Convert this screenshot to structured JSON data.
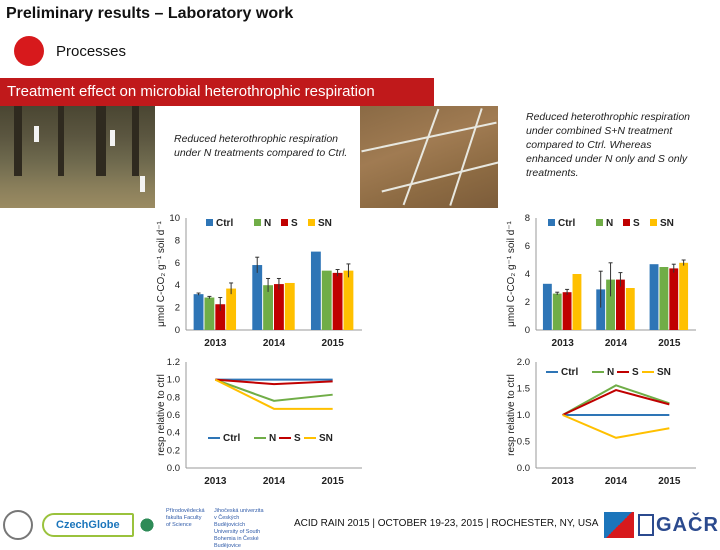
{
  "header": {
    "title": "Preliminary results – Laboratory work",
    "section": "Processes",
    "banner": "Treatment effect on microbial heterothrophic respiration"
  },
  "notes": {
    "left": "Reduced heterothrophic respiration under N treatments compared to Ctrl.",
    "right": "Reduced heterothrophic respiration under combined S+N treatment compared to Ctrl. Whereas enhanced under N only and S only treatments."
  },
  "footer": {
    "conference": "ACID RAIN 2015 | OCTOBER 19-23, 2015 | ROCHESTER, NY, USA",
    "logo_czechglobe": "CzechGlobe",
    "logo_uni_a": "Přírodovědecká fakulta Faculty of Science",
    "logo_uni_b": "Jihočeská univerzita v Českých Budějovicích University of South Bohemia in České Budějovice",
    "logo_gacr": "GAČR"
  },
  "colors": {
    "Ctrl": "#2e75b6",
    "N": "#70ad47",
    "S": "#c00000",
    "SN": "#ffc000",
    "banner": "#c0191b"
  },
  "chart_data": [
    {
      "type": "bar",
      "ylabel": "μmol C-CO₂ g⁻¹ soil d⁻¹",
      "ylim": [
        0,
        10
      ],
      "yticks": [
        0,
        2,
        4,
        6,
        8,
        10
      ],
      "categories": [
        "2013",
        "2014",
        "2015"
      ],
      "series": [
        {
          "name": "Ctrl",
          "values": [
            3.2,
            5.8,
            7.0
          ],
          "errors": [
            0.1,
            0.7,
            0.0
          ]
        },
        {
          "name": "N",
          "values": [
            2.9,
            4.0,
            5.3
          ],
          "errors": [
            0.1,
            0.6,
            0.0
          ]
        },
        {
          "name": "S",
          "values": [
            2.3,
            4.1,
            5.1
          ],
          "errors": [
            0.6,
            0.5,
            0.3
          ]
        },
        {
          "name": "SN",
          "values": [
            3.7,
            4.2,
            5.3
          ],
          "errors": [
            0.5,
            0.0,
            0.6
          ]
        }
      ],
      "legend": "top"
    },
    {
      "type": "bar",
      "ylabel": "μmol C-CO₂ g⁻¹ soil d⁻¹",
      "ylim": [
        0,
        8
      ],
      "yticks": [
        0,
        2,
        4,
        6,
        8
      ],
      "categories": [
        "2013",
        "2014",
        "2015"
      ],
      "series": [
        {
          "name": "Ctrl",
          "values": [
            3.3,
            2.9,
            4.7
          ],
          "errors": [
            0.0,
            1.3,
            0.0
          ]
        },
        {
          "name": "N",
          "values": [
            2.6,
            3.6,
            4.5
          ],
          "errors": [
            0.1,
            1.2,
            0.0
          ]
        },
        {
          "name": "S",
          "values": [
            2.7,
            3.6,
            4.4
          ],
          "errors": [
            0.2,
            0.5,
            0.3
          ]
        },
        {
          "name": "SN",
          "values": [
            4.0,
            3.0,
            4.8
          ],
          "errors": [
            0.0,
            0.0,
            0.2
          ]
        }
      ],
      "legend": "top"
    },
    {
      "type": "line",
      "ylabel": "resp relative to ctrl",
      "ylim": [
        0,
        1.2
      ],
      "yticks": [
        0.0,
        0.2,
        0.4,
        0.6,
        0.8,
        1.0,
        1.2
      ],
      "categories": [
        "2013",
        "2014",
        "2015"
      ],
      "series": [
        {
          "name": "Ctrl",
          "values": [
            1.0,
            1.0,
            1.0
          ]
        },
        {
          "name": "N",
          "values": [
            1.0,
            0.76,
            0.83
          ]
        },
        {
          "name": "S",
          "values": [
            1.0,
            0.95,
            0.98
          ]
        },
        {
          "name": "SN",
          "values": [
            1.0,
            0.67,
            0.67
          ]
        }
      ],
      "legend": "bottom-left"
    },
    {
      "type": "line",
      "ylabel": "resp relative to ctrl",
      "ylim": [
        0,
        2.0
      ],
      "yticks": [
        0.0,
        0.5,
        1.0,
        1.5,
        2.0
      ],
      "categories": [
        "2013",
        "2014",
        "2015"
      ],
      "series": [
        {
          "name": "Ctrl",
          "values": [
            1.0,
            1.0,
            1.0
          ]
        },
        {
          "name": "N",
          "values": [
            1.0,
            1.56,
            1.22
          ]
        },
        {
          "name": "S",
          "values": [
            1.0,
            1.47,
            1.2
          ]
        },
        {
          "name": "SN",
          "values": [
            1.0,
            0.57,
            0.75
          ]
        }
      ],
      "legend": "top"
    }
  ]
}
